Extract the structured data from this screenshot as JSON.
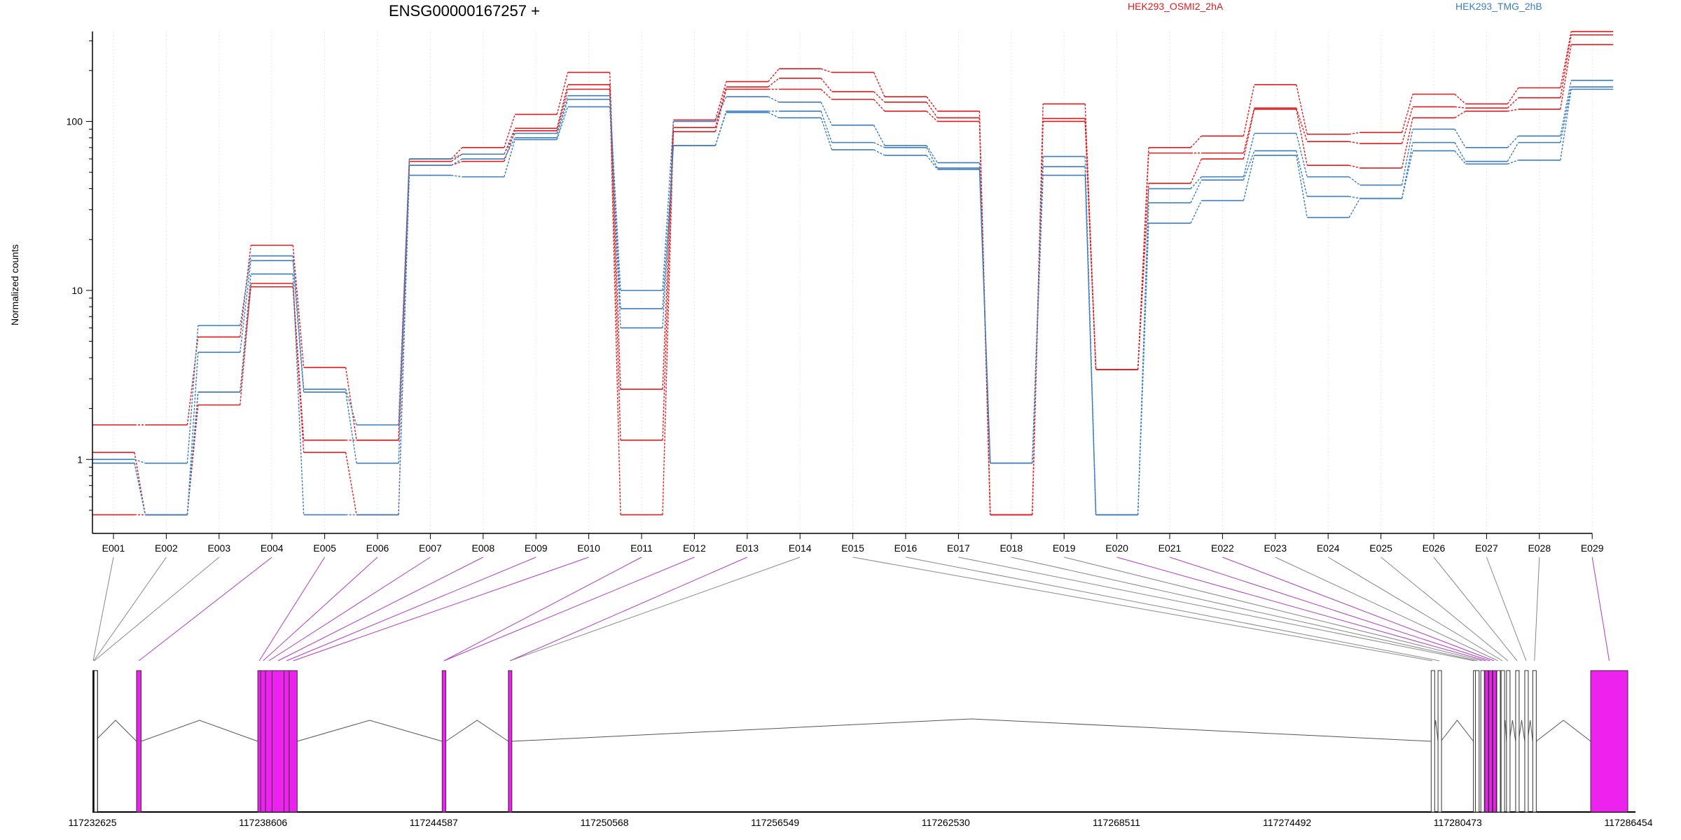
{
  "chart_data": {
    "type": "line",
    "title": "ENSG00000167257 +",
    "ylabel": "Normalized counts",
    "yscale": "log",
    "ylim": [
      0.45,
      420
    ],
    "yticks": [
      {
        "value": 1,
        "label": "1"
      },
      {
        "value": 10,
        "label": "10"
      },
      {
        "value": 100,
        "label": "100"
      }
    ],
    "categories": [
      "E001",
      "E002",
      "E003",
      "E004",
      "E005",
      "E006",
      "E007",
      "E008",
      "E009",
      "E010",
      "E011",
      "E012",
      "E013",
      "E014",
      "E015",
      "E016",
      "E017",
      "E018",
      "E019",
      "E020",
      "E021",
      "E022",
      "E023",
      "E024",
      "E025",
      "E026",
      "E027",
      "E028",
      "E029"
    ],
    "legend": [
      {
        "label": "HEK293_OSMI2_2hA",
        "color": "#e31a1c"
      },
      {
        "label": "HEK293_TMG_2hB",
        "color": "#3a7ebf"
      }
    ],
    "series": [
      {
        "group": "HEK293_OSMI2_2hA",
        "color": "#e31a1c",
        "values": [
          1.6,
          1.6,
          5.3,
          18.5,
          3.5,
          1.3,
          60,
          70,
          110,
          195,
          2.6,
          102,
          172,
          205,
          195,
          140,
          115,
          0.47,
          127,
          3.4,
          70,
          82,
          165,
          84,
          86,
          145,
          127,
          158,
          340
        ]
      },
      {
        "group": "HEK293_OSMI2_2hA",
        "color": "#e31a1c",
        "values": [
          1.1,
          0.47,
          2.1,
          11,
          1.3,
          1.3,
          58,
          64,
          91,
          165,
          1.3,
          92,
          160,
          180,
          150,
          130,
          105,
          0.47,
          104,
          3.4,
          65,
          65,
          120,
          76,
          74,
          122,
          120,
          138,
          325
        ]
      },
      {
        "group": "HEK293_OSMI2_2hA",
        "color": "#e31a1c",
        "values": [
          0.47,
          0.47,
          2.5,
          10.5,
          1.1,
          0.47,
          55,
          58,
          88,
          155,
          0.47,
          87,
          155,
          155,
          135,
          115,
          100,
          0.47,
          100,
          3.4,
          43,
          60,
          118,
          55,
          53,
          105,
          115,
          118,
          285
        ]
      },
      {
        "group": "HEK293_TMG_2hB",
        "color": "#3a7ebf",
        "values": [
          1.0,
          0.95,
          6.2,
          16,
          2.6,
          1.6,
          60,
          64,
          85,
          142,
          10,
          100,
          140,
          130,
          95,
          72,
          57,
          0.95,
          62,
          0.47,
          40,
          47,
          85,
          47,
          42,
          90,
          70,
          82,
          175
        ]
      },
      {
        "group": "HEK293_TMG_2hB",
        "color": "#3a7ebf",
        "values": [
          0.95,
          0.47,
          4.3,
          15,
          2.5,
          0.95,
          55,
          60,
          80,
          135,
          6,
          72,
          115,
          115,
          75,
          70,
          53,
          0.95,
          54,
          0.47,
          33,
          45,
          67,
          36,
          35,
          75,
          58,
          75,
          160
        ]
      },
      {
        "group": "HEK293_TMG_2hB",
        "color": "#3a7ebf",
        "values": [
          0.95,
          0.47,
          2.5,
          12.5,
          0.47,
          0.47,
          48,
          47,
          78,
          122,
          7.8,
          72,
          113,
          105,
          68,
          63,
          52,
          0.95,
          48,
          0.47,
          25,
          34,
          63,
          27,
          35,
          67,
          56,
          59,
          155
        ]
      }
    ],
    "gene_model": {
      "coordinate_labels": [
        "117232625",
        "117238606",
        "117244587",
        "117250568",
        "117256549",
        "117262530",
        "117268511",
        "117274492",
        "117280473",
        "117286454"
      ],
      "exon_colors": [
        "#000000",
        "#000000",
        "#000000",
        "#ff00ff",
        "#ff00ff",
        "#ff00ff",
        "#ff00ff",
        "#ff00ff",
        "#ff00ff",
        "#ff00ff",
        "#ff00ff",
        "#ff00ff",
        "#ff00ff",
        "#ffffff",
        "#ffffff",
        "#ffffff",
        "#ffffff",
        "#ffffff",
        "#ffffff",
        "#ff00ff",
        "#ff00ff",
        "#ff00ff",
        "#ffffff",
        "#ffffff",
        "#ffffff",
        "#ffffff",
        "#ffffff",
        "#ffffff",
        "#ff00ff"
      ],
      "highlight_color": "#ee22ee",
      "link_color_default": "#888888",
      "link_color_highlight": "#b03cc0"
    }
  }
}
